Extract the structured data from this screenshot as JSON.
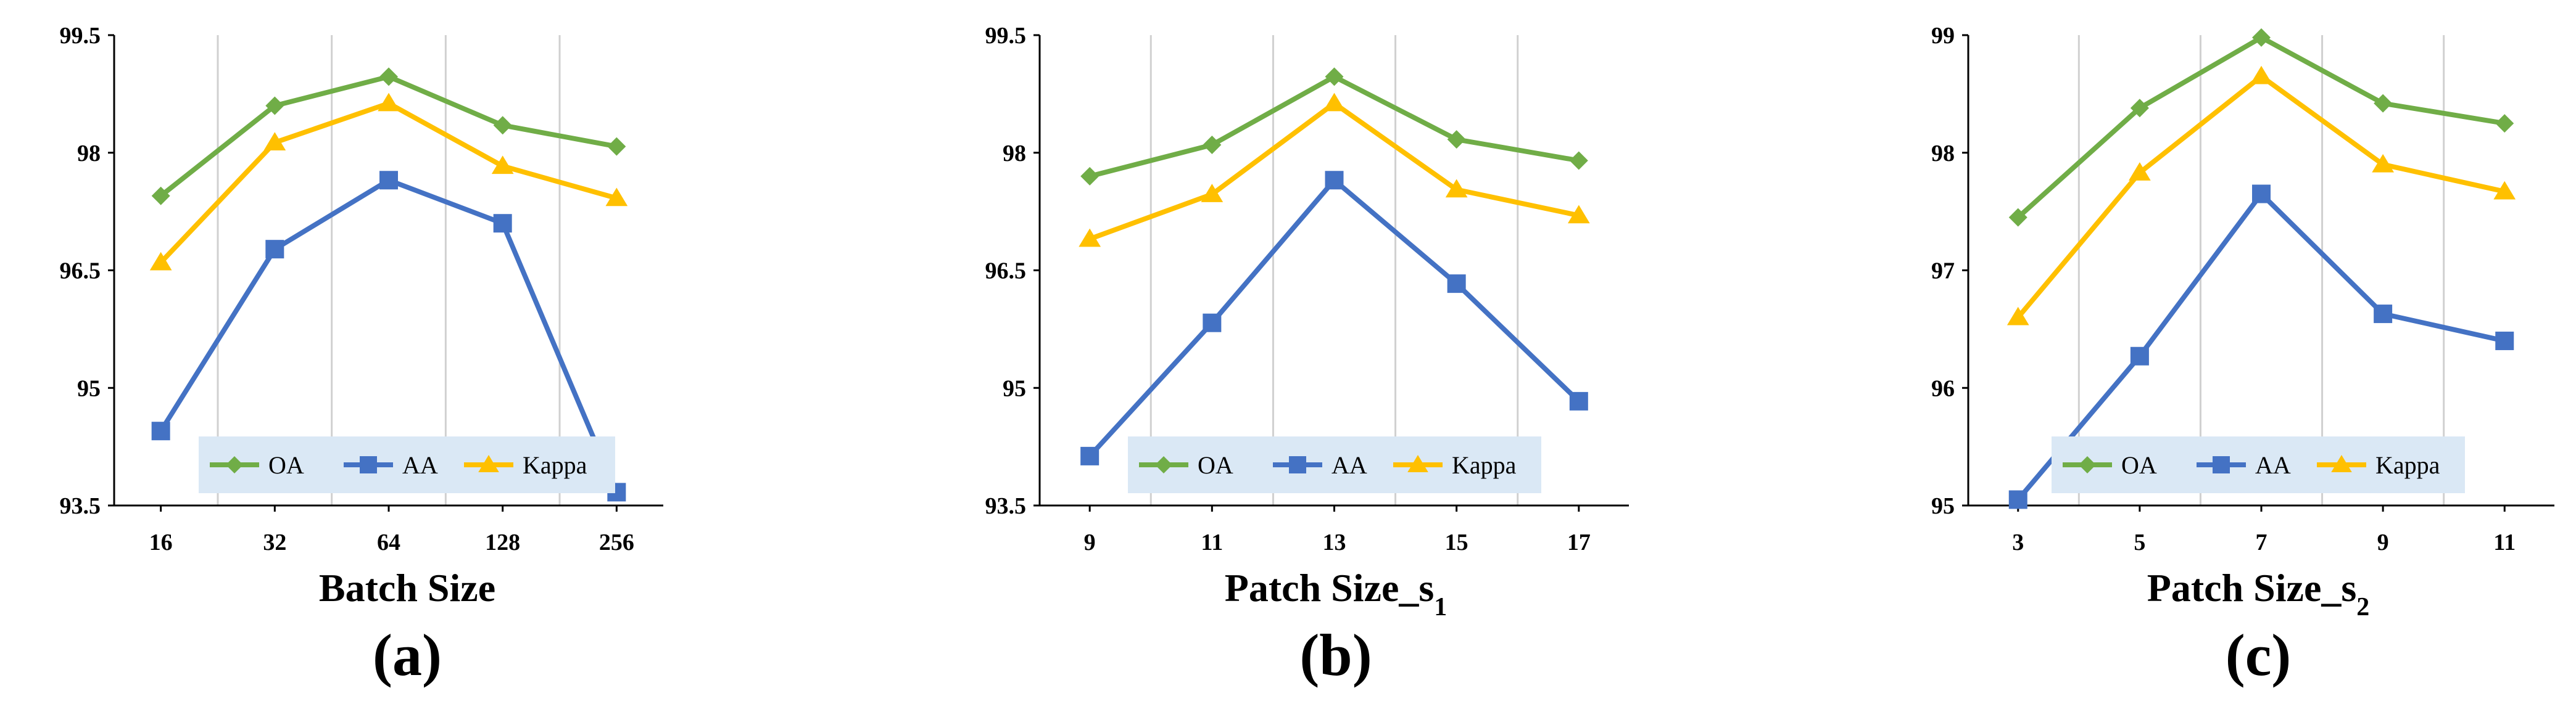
{
  "colors": {
    "OA": "#70ad47",
    "AA": "#4472c4",
    "Kappa": "#ffc000",
    "legend_bg": "#dae8f5",
    "grid": "#d0d0d0",
    "axis": "#000000"
  },
  "chart_data": [
    {
      "type": "line",
      "panel": "(a)",
      "xlabel": "Batch Size",
      "xlabel_sub": "",
      "ylim": [
        93.5,
        99.5
      ],
      "yticks": [
        "93.5",
        "95",
        "96.5",
        "98",
        "99.5"
      ],
      "ytick_values": [
        93.5,
        95,
        96.5,
        98,
        99.5
      ],
      "categories": [
        "16",
        "32",
        "64",
        "128",
        "256"
      ],
      "grid": true,
      "legend": "bottom-center",
      "series": [
        {
          "name": "OA",
          "marker": "diamond",
          "values": [
            97.45,
            98.6,
            98.97,
            98.35,
            98.08
          ]
        },
        {
          "name": "AA",
          "marker": "square",
          "values": [
            94.45,
            96.77,
            97.65,
            97.1,
            93.67
          ]
        },
        {
          "name": "Kappa",
          "marker": "triangle",
          "values": [
            96.6,
            98.13,
            98.63,
            97.83,
            97.42
          ]
        }
      ]
    },
    {
      "type": "line",
      "panel": "(b)",
      "xlabel": "Patch Size_s",
      "xlabel_sub": "1",
      "ylim": [
        93.5,
        99.5
      ],
      "yticks": [
        "93.5",
        "95",
        "96.5",
        "98",
        "99.5"
      ],
      "ytick_values": [
        93.5,
        95,
        96.5,
        98,
        99.5
      ],
      "categories": [
        "9",
        "11",
        "13",
        "15",
        "17"
      ],
      "grid": true,
      "legend": "bottom-center",
      "series": [
        {
          "name": "OA",
          "marker": "diamond",
          "values": [
            97.7,
            98.1,
            98.97,
            98.17,
            97.9
          ]
        },
        {
          "name": "AA",
          "marker": "square",
          "values": [
            94.13,
            95.83,
            97.65,
            96.33,
            94.83
          ]
        },
        {
          "name": "Kappa",
          "marker": "triangle",
          "values": [
            96.9,
            97.47,
            98.63,
            97.53,
            97.2
          ]
        }
      ]
    },
    {
      "type": "line",
      "panel": "(c)",
      "xlabel": "Patch Size_s",
      "xlabel_sub": "2",
      "ylim": [
        95,
        99
      ],
      "yticks": [
        "95",
        "96",
        "97",
        "98",
        "99"
      ],
      "ytick_values": [
        95,
        96,
        97,
        98,
        99
      ],
      "categories": [
        "3",
        "5",
        "7",
        "9",
        "11"
      ],
      "grid": true,
      "legend": "bottom-center",
      "series": [
        {
          "name": "OA",
          "marker": "diamond",
          "values": [
            97.45,
            98.38,
            98.98,
            98.42,
            98.25
          ]
        },
        {
          "name": "AA",
          "marker": "square",
          "values": [
            95.05,
            96.27,
            97.65,
            96.63,
            96.4
          ]
        },
        {
          "name": "Kappa",
          "marker": "triangle",
          "values": [
            96.6,
            97.83,
            98.65,
            97.9,
            97.67
          ]
        }
      ]
    }
  ]
}
